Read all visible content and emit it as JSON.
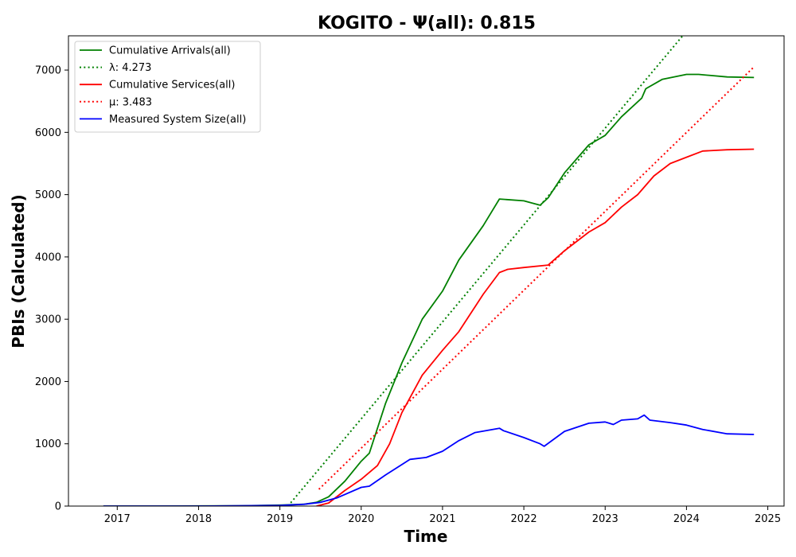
{
  "chart_data": {
    "type": "line",
    "title": "KOGITO -  Ψ(all): 0.815",
    "xlabel": "Time",
    "ylabel": "PBIs (Calculated)",
    "xlim": [
      2016.4,
      2025.2
    ],
    "ylim": [
      0,
      7550
    ],
    "x_ticks": [
      2017,
      2018,
      2019,
      2020,
      2021,
      2022,
      2023,
      2024,
      2025
    ],
    "y_ticks": [
      0,
      1000,
      2000,
      3000,
      4000,
      5000,
      6000,
      7000
    ],
    "grid": false,
    "legend_position": "top-left",
    "colors": {
      "arrivals": "#008000",
      "services": "#ff0000",
      "system": "#0000ff"
    },
    "series": [
      {
        "name": "Cumulative Arrivals(all)",
        "style": "solid",
        "color": "#008000",
        "x": [
          2016.83,
          2017.5,
          2018.5,
          2019.0,
          2019.3,
          2019.45,
          2019.6,
          2019.8,
          2020.0,
          2020.1,
          2020.3,
          2020.5,
          2020.75,
          2021.0,
          2021.2,
          2021.5,
          2021.7,
          2022.0,
          2022.2,
          2022.3,
          2022.5,
          2022.8,
          2023.0,
          2023.2,
          2023.45,
          2023.5,
          2023.7,
          2024.0,
          2024.15,
          2024.5,
          2024.83
        ],
        "y": [
          0,
          0,
          5,
          15,
          30,
          60,
          150,
          400,
          720,
          850,
          1650,
          2300,
          3000,
          3450,
          3950,
          4500,
          4930,
          4900,
          4830,
          4950,
          5350,
          5800,
          5950,
          6250,
          6550,
          6700,
          6850,
          6930,
          6930,
          6890,
          6880
        ]
      },
      {
        "name": "λ: 4.273",
        "style": "dotted",
        "color": "#008000",
        "x": [
          2019.1,
          2023.96
        ],
        "y": [
          0,
          7560
        ]
      },
      {
        "name": "Cumulative Services(all)",
        "style": "solid",
        "color": "#ff0000",
        "x": [
          2019.45,
          2019.6,
          2019.8,
          2020.0,
          2020.2,
          2020.35,
          2020.5,
          2020.75,
          2021.0,
          2021.2,
          2021.5,
          2021.7,
          2021.8,
          2022.0,
          2022.3,
          2022.5,
          2022.8,
          2023.0,
          2023.2,
          2023.4,
          2023.6,
          2023.8,
          2024.0,
          2024.2,
          2024.5,
          2024.83
        ],
        "y": [
          0,
          50,
          250,
          430,
          650,
          1000,
          1500,
          2100,
          2500,
          2800,
          3400,
          3750,
          3800,
          3830,
          3870,
          4100,
          4400,
          4550,
          4800,
          5000,
          5300,
          5500,
          5600,
          5700,
          5720,
          5730
        ]
      },
      {
        "name": "μ: 3.483",
        "style": "dotted",
        "color": "#ff0000",
        "x": [
          2019.48,
          2024.83
        ],
        "y": [
          270,
          7050
        ]
      },
      {
        "name": "Measured System Size(all)",
        "style": "solid",
        "color": "#0000ff",
        "x": [
          2016.83,
          2018.0,
          2019.0,
          2019.3,
          2019.5,
          2019.7,
          2020.0,
          2020.1,
          2020.3,
          2020.6,
          2020.8,
          2021.0,
          2021.2,
          2021.4,
          2021.7,
          2021.75,
          2022.0,
          2022.2,
          2022.25,
          2022.5,
          2022.8,
          2023.0,
          2023.1,
          2023.2,
          2023.4,
          2023.48,
          2023.55,
          2023.8,
          2024.0,
          2024.2,
          2024.5,
          2024.83
        ],
        "y": [
          0,
          0,
          10,
          30,
          60,
          130,
          300,
          320,
          500,
          750,
          780,
          880,
          1050,
          1180,
          1250,
          1210,
          1100,
          1000,
          960,
          1200,
          1330,
          1350,
          1310,
          1380,
          1400,
          1460,
          1380,
          1340,
          1300,
          1230,
          1160,
          1150
        ]
      }
    ]
  }
}
